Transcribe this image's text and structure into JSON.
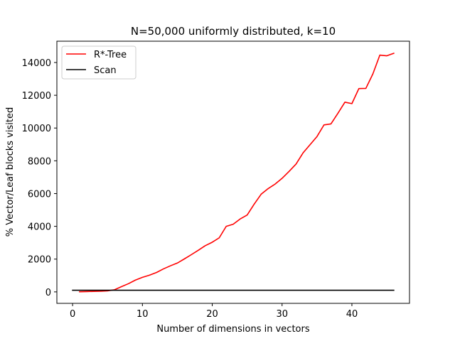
{
  "chart_data": {
    "type": "line",
    "title": "N=50,000 uniformly distributed, k=10",
    "xlabel": "Number of dimensions in vectors",
    "ylabel": "% Vector/Leaf blocks visited",
    "xlim": [
      -2.25,
      48.25
    ],
    "ylim": [
      -700,
      15300
    ],
    "xticks": [
      0,
      10,
      20,
      30,
      40
    ],
    "yticks": [
      0,
      2000,
      4000,
      6000,
      8000,
      10000,
      12000,
      14000
    ],
    "grid": false,
    "legend_position": "top-left",
    "series": [
      {
        "name": "R*-Tree",
        "color": "#ff0000",
        "x": [
          1,
          2,
          3,
          4,
          5,
          6,
          7,
          8,
          9,
          10,
          11,
          12,
          13,
          14,
          15,
          16,
          17,
          18,
          19,
          20,
          21,
          22,
          23,
          24,
          25,
          26,
          27,
          28,
          29,
          30,
          31,
          32,
          33,
          34,
          35,
          36,
          37,
          38,
          39,
          40,
          41,
          42,
          43,
          44,
          45,
          46
        ],
        "y": [
          10,
          20,
          30,
          40,
          60,
          130,
          320,
          500,
          720,
          890,
          1020,
          1180,
          1400,
          1590,
          1760,
          2010,
          2270,
          2540,
          2820,
          3030,
          3300,
          4000,
          4130,
          4450,
          4690,
          5350,
          5960,
          6300,
          6580,
          6930,
          7350,
          7800,
          8480,
          8980,
          9480,
          10190,
          10250,
          10900,
          11580,
          11490,
          12410,
          12420,
          13300,
          14450,
          14410,
          14560
        ]
      },
      {
        "name": "Scan",
        "color": "#000000",
        "x": [
          0,
          46
        ],
        "y": [
          100,
          100
        ]
      }
    ]
  }
}
